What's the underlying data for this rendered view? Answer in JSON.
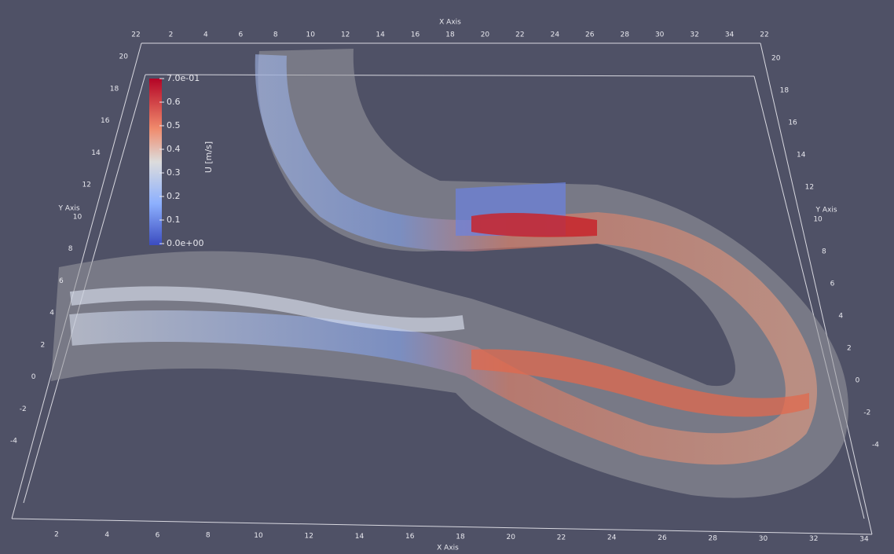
{
  "axes": {
    "top": {
      "title": "X Axis",
      "ticks": [
        "22",
        "2",
        "4",
        "6",
        "8",
        "10",
        "12",
        "14",
        "16",
        "18",
        "20",
        "22",
        "24",
        "26",
        "28",
        "30",
        "32",
        "34",
        "22"
      ]
    },
    "bottom": {
      "title": "X Axis",
      "ticks": [
        "2",
        "4",
        "6",
        "8",
        "10",
        "12",
        "14",
        "16",
        "18",
        "20",
        "22",
        "24",
        "26",
        "28",
        "30",
        "32",
        "34"
      ]
    },
    "left": {
      "title": "Y Axis",
      "ticks": [
        "20",
        "18",
        "16",
        "14",
        "12",
        "10",
        "8",
        "6",
        "4",
        "2",
        "0",
        "-2",
        "-4"
      ]
    },
    "right": {
      "title": "Y Axis",
      "ticks": [
        "20",
        "18",
        "16",
        "14",
        "12",
        "10",
        "8",
        "6",
        "4",
        "2",
        "0",
        "-2",
        "-4"
      ]
    }
  },
  "colorbar": {
    "title": "U [m/s]",
    "labels": [
      "7.0e-01",
      "0.6",
      "0.5",
      "0.4",
      "0.3",
      "0.2",
      "0.1",
      "0.0e+00"
    ]
  }
}
